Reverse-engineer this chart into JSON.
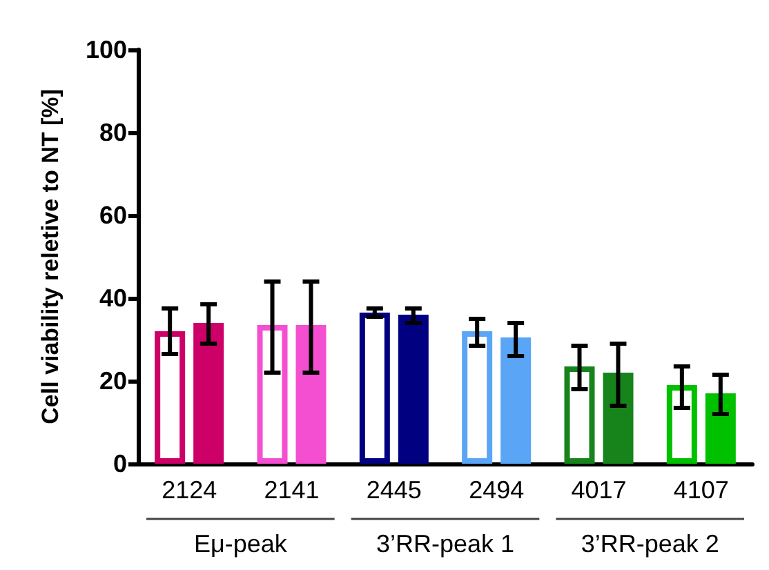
{
  "chart_data": {
    "type": "bar",
    "ylabel": "Cell viability reletive to NT [%]",
    "categories": [
      "2124",
      "2141",
      "2445",
      "2494",
      "4017",
      "4107"
    ],
    "series": [
      {
        "colors": [
          "#cc0066",
          "#f44fd0",
          "#000080",
          "#5aa5f5",
          "#16841b",
          "#00c000"
        ],
        "values": [
          32,
          33.5,
          36.5,
          32,
          23.5,
          19
        ],
        "errors": [
          [
            26.5,
            37.5
          ],
          [
            22,
            44
          ],
          [
            35.5,
            37.5
          ],
          [
            28.5,
            35
          ],
          [
            18,
            28.5
          ],
          [
            13.5,
            23.5
          ]
        ]
      },
      {
        "colors": [
          "#cc0066",
          "#f44fd0",
          "#000080",
          "#5aa5f5",
          "#16841b",
          "#00c000"
        ],
        "values": [
          34,
          33.5,
          36,
          30.5,
          22,
          17
        ],
        "errors": [
          [
            29,
            38.5
          ],
          [
            22,
            44
          ],
          [
            34,
            37.5
          ],
          [
            26,
            34
          ],
          [
            14,
            29
          ],
          [
            12,
            21.5
          ]
        ]
      }
    ],
    "annotations": [
      "Eμ-peak",
      "3’RR-peak 1",
      "3’RR-peak 2"
    ],
    "ylim": [
      0,
      100
    ],
    "yticks": [
      0,
      20,
      40,
      60,
      80,
      100
    ],
    "grid": false
  }
}
